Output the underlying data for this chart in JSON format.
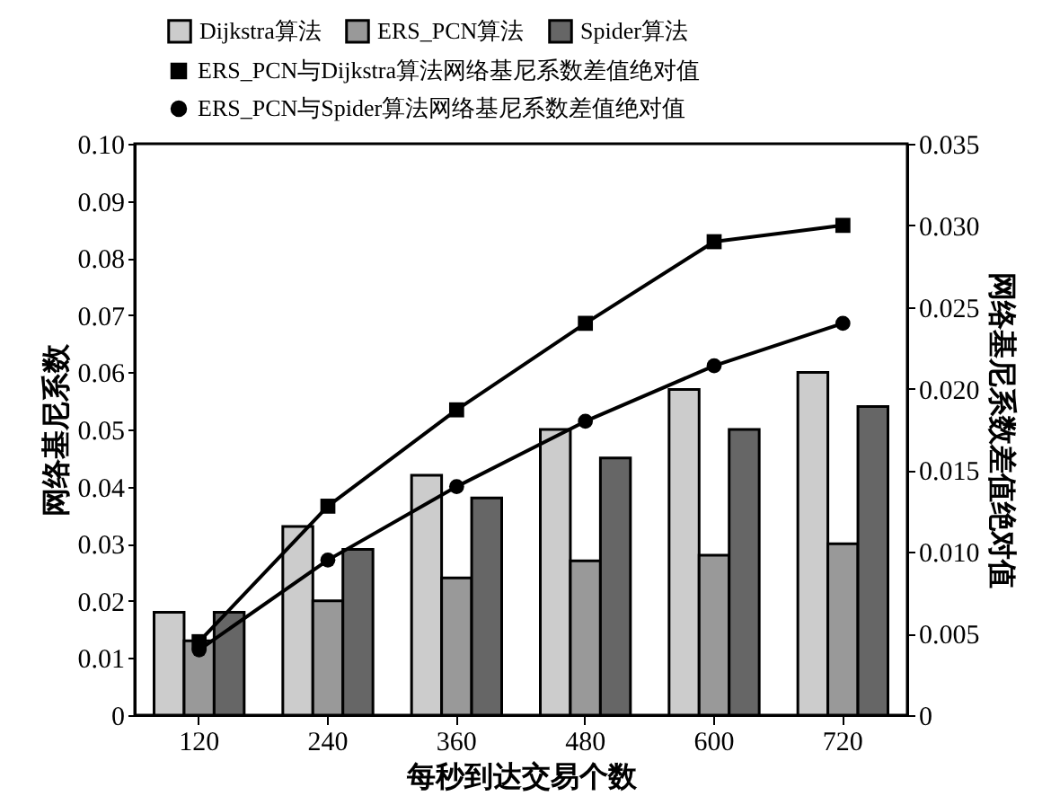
{
  "chart_data": {
    "type": "bar",
    "xlabel": "每秒到达交易个数",
    "ylabel": "网络基尼系数",
    "y2label": "网络基尼系数差值绝对值",
    "categories": [
      "120",
      "240",
      "360",
      "480",
      "600",
      "720"
    ],
    "series": [
      {
        "name": "Dijkstra算法",
        "color": "#cccccc",
        "values": [
          0.018,
          0.033,
          0.042,
          0.05,
          0.057,
          0.06
        ]
      },
      {
        "name": "ERS_PCN算法",
        "color": "#999999",
        "values": [
          0.013,
          0.02,
          0.024,
          0.027,
          0.028,
          0.03
        ]
      },
      {
        "name": "Spider算法",
        "color": "#666666",
        "values": [
          0.018,
          0.029,
          0.038,
          0.045,
          0.05,
          0.054
        ]
      },
      {
        "name": "ERS_PCN与Dijkstra算法网络基尼系数差值绝对值",
        "type": "line",
        "axis": "y2",
        "marker": "square",
        "color": "#000000",
        "values": [
          0.0045,
          0.0128,
          0.0187,
          0.024,
          0.029,
          0.03
        ]
      },
      {
        "name": "ERS_PCN与Spider算法网络基尼系数差值绝对值",
        "type": "line",
        "axis": "y2",
        "marker": "circle",
        "color": "#000000",
        "values": [
          0.004,
          0.0095,
          0.014,
          0.018,
          0.0214,
          0.024
        ]
      }
    ],
    "ylim": [
      0,
      0.1
    ],
    "yticks": [
      0,
      {
        "value": 0.01,
        "label": "0.01"
      },
      {
        "value": 0.02,
        "label": "0.02"
      },
      {
        "value": 0.03,
        "label": "0.03"
      },
      {
        "value": 0.04,
        "label": "0.04"
      },
      {
        "value": 0.05,
        "label": "0.05"
      },
      {
        "value": 0.06,
        "label": "0.06"
      },
      {
        "value": 0.07,
        "label": "0.07"
      },
      {
        "value": 0.08,
        "label": "0.08"
      },
      {
        "value": 0.09,
        "label": "0.09"
      },
      {
        "value": 0.1,
        "label": "0.10"
      }
    ],
    "y2lim": [
      0,
      0.035
    ],
    "y2ticks": [
      0,
      {
        "value": 0.005,
        "label": "0.005"
      },
      {
        "value": 0.01,
        "label": "0.010"
      },
      {
        "value": 0.015,
        "label": "0.015"
      },
      {
        "value": 0.02,
        "label": "0.020"
      },
      {
        "value": 0.025,
        "label": "0.025"
      },
      {
        "value": 0.03,
        "label": "0.030"
      },
      {
        "value": 0.035,
        "label": "0.035"
      }
    ],
    "legend": "top",
    "grid": false
  }
}
